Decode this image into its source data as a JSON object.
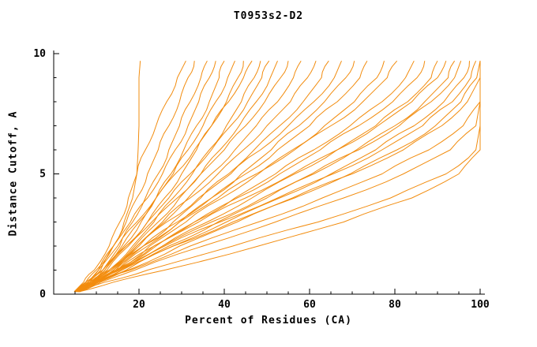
{
  "chart_data": {
    "type": "line",
    "title": "T0953s2-D2",
    "xlabel": "Percent of Residues (CA)",
    "ylabel": "Distance Cutoff, A",
    "xlim": [
      0,
      100
    ],
    "ylim": [
      0,
      10
    ],
    "grid": false,
    "legend": "none",
    "line_color": "#f28c0e",
    "axis_color": "#000000",
    "x_ticks": [
      20,
      40,
      60,
      80,
      100
    ],
    "x_tick_labels": [
      "20",
      "40",
      "60",
      "80",
      "100"
    ],
    "x_minor_step": 5,
    "y_ticks": [
      0,
      5,
      10
    ],
    "y_tick_labels": [
      "0",
      "5",
      "10"
    ],
    "y_minor_step": 1,
    "y_levels": [
      0.1,
      0.5,
      1,
      2,
      3,
      4,
      5,
      6,
      7,
      8,
      9,
      9.7
    ],
    "series": [
      [
        5,
        8,
        11,
        14,
        16.5,
        18.5,
        19.5,
        19.8,
        20,
        20,
        20,
        20.3
      ],
      [
        4.8,
        7,
        9.5,
        13,
        15.5,
        17.5,
        19.5,
        21.5,
        24,
        26.5,
        29,
        31
      ],
      [
        5.2,
        8,
        10.5,
        14,
        17,
        19.5,
        22,
        24.5,
        27,
        29.5,
        31.5,
        33
      ],
      [
        5.5,
        8.5,
        11.5,
        15.5,
        18.5,
        21.5,
        24.5,
        27,
        29.5,
        32,
        34.5,
        36
      ],
      [
        5,
        7.5,
        10,
        14,
        18,
        22,
        25.5,
        28.5,
        31.5,
        34,
        36.5,
        38
      ],
      [
        5.8,
        9,
        12,
        16.5,
        20.5,
        24,
        27.5,
        30.5,
        33.5,
        36.5,
        38.8,
        40
      ],
      [
        5.3,
        8.5,
        11.5,
        16,
        20,
        24,
        28,
        31.5,
        35,
        38,
        40.8,
        42.5
      ],
      [
        5.6,
        9,
        12.5,
        17.5,
        22,
        26,
        30,
        33.5,
        37,
        40.5,
        43.2,
        44.5
      ],
      [
        4.9,
        7.5,
        10.5,
        15,
        19.5,
        24,
        28.5,
        33,
        37,
        41,
        44.5,
        46.5
      ],
      [
        6,
        9.5,
        13,
        18.5,
        23.5,
        28,
        32.5,
        36.5,
        40.5,
        44,
        47,
        48.5
      ],
      [
        5.4,
        8.5,
        12,
        17,
        22,
        27,
        32,
        37,
        41.5,
        45.5,
        48.8,
        50.5
      ],
      [
        5.7,
        9.5,
        13.5,
        19,
        24.5,
        29.5,
        34.5,
        39,
        43.5,
        47.5,
        50.8,
        52.5
      ],
      [
        5,
        8,
        11.5,
        17,
        23,
        29,
        34.5,
        40,
        45,
        49.5,
        53.2,
        55
      ],
      [
        5.8,
        9.5,
        14,
        20,
        26,
        31.5,
        37,
        42.5,
        47.5,
        52.5,
        56.2,
        58
      ],
      [
        5.3,
        9,
        13.5,
        19.5,
        25.5,
        32,
        38.5,
        44.5,
        50,
        55.5,
        59.5,
        61.5
      ],
      [
        5.6,
        9.5,
        14.5,
        21,
        28,
        34.5,
        41,
        47,
        53,
        58.5,
        62.8,
        64.5
      ],
      [
        5,
        8.5,
        13,
        19.5,
        26.5,
        34,
        41.5,
        48.5,
        55,
        61,
        65.8,
        67.5
      ],
      [
        6.1,
        10,
        15,
        22,
        29.5,
        37,
        44,
        51,
        57.5,
        63.5,
        68.5,
        70.5
      ],
      [
        5.4,
        9,
        14,
        21,
        29,
        37,
        45,
        52.5,
        60,
        66.5,
        71.8,
        73.5
      ],
      [
        5.8,
        9.5,
        15,
        22.5,
        31,
        39.5,
        48,
        56,
        63.5,
        70.5,
        75.8,
        77.5
      ],
      [
        5,
        8.5,
        13.5,
        21,
        29.5,
        38.5,
        47.5,
        56.5,
        65,
        72.5,
        78.2,
        80.5
      ],
      [
        5.9,
        10,
        15.5,
        24,
        33,
        42.5,
        52,
        61,
        69.5,
        77,
        82.5,
        84.5
      ],
      [
        5.4,
        9.5,
        15,
        23.5,
        33,
        43,
        53,
        62.5,
        71.5,
        79.5,
        85.2,
        87
      ],
      [
        5.7,
        10,
        16,
        25.5,
        36,
        46.5,
        56.5,
        66.5,
        75.5,
        83,
        88.5,
        90
      ],
      [
        5,
        9,
        14.5,
        23.5,
        34,
        45,
        56,
        66.5,
        76,
        84,
        90,
        92
      ],
      [
        6.2,
        10.5,
        17,
        27,
        38.5,
        50,
        61,
        71,
        80,
        87,
        92.5,
        94
      ],
      [
        5.5,
        9.5,
        15.5,
        25.5,
        37,
        49,
        60.5,
        71.5,
        81,
        88.5,
        94,
        95.5
      ],
      [
        5.8,
        10.5,
        17,
        28,
        40.5,
        53,
        65,
        75.5,
        84.5,
        91.5,
        96.2,
        97.5
      ],
      [
        5,
        9,
        15,
        26,
        39,
        52.5,
        65.5,
        77,
        86.5,
        93.5,
        97.8,
        99
      ],
      [
        6,
        10.5,
        17.5,
        29.5,
        43,
        56.5,
        69.5,
        80.5,
        89.5,
        95.5,
        99.2,
        100
      ],
      [
        5.5,
        9.5,
        16,
        28,
        42,
        56,
        70,
        82,
        91,
        97,
        100,
        100
      ],
      [
        5.2,
        10,
        18,
        32,
        48,
        63,
        77,
        88,
        96,
        100,
        100,
        100
      ],
      [
        6,
        11,
        19,
        35,
        52,
        68,
        82,
        93,
        99,
        100,
        100,
        100
      ],
      [
        5.8,
        12,
        22,
        42,
        62,
        79,
        92,
        99,
        100,
        100,
        100,
        100
      ],
      [
        6,
        14,
        26,
        48,
        68,
        84,
        95,
        100,
        100,
        100,
        100,
        100
      ]
    ]
  }
}
